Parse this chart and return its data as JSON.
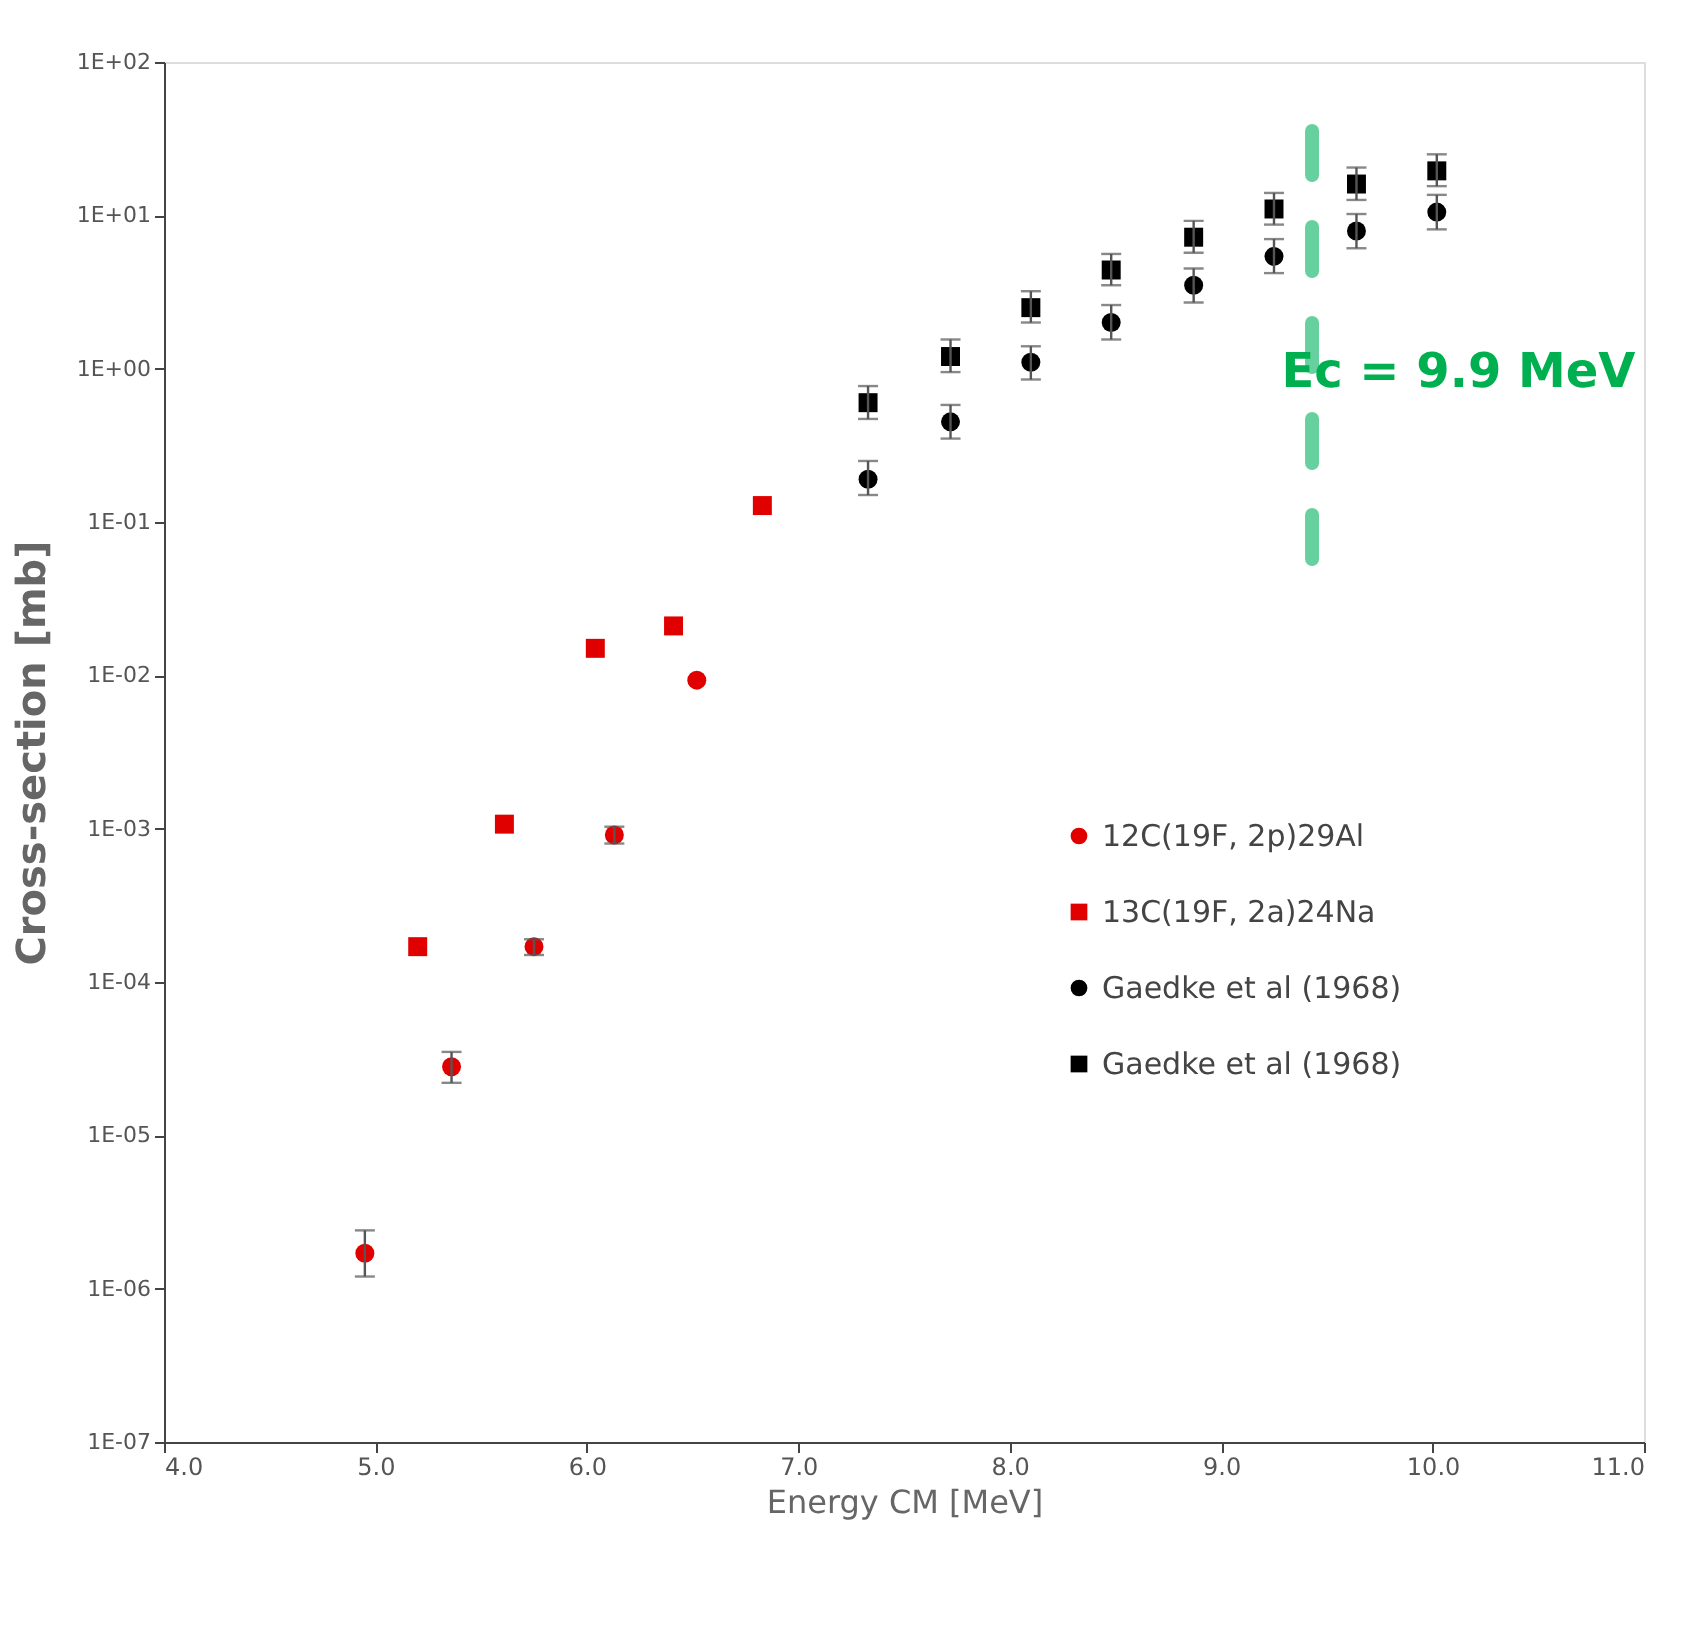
{
  "chart_data": {
    "type": "scatter",
    "xlabel": "Energy CM [MeV]",
    "ylabel": "Cross-section [mb]",
    "log": "y",
    "xlim": [
      4.0,
      11.0
    ],
    "xticks": [
      {
        "value": 4,
        "label": "4.0"
      },
      {
        "value": 5,
        "label": "5.0"
      },
      {
        "value": 6,
        "label": "6.0"
      },
      {
        "value": 7,
        "label": "7.0"
      },
      {
        "value": 8,
        "label": "8.0"
      },
      {
        "value": 9,
        "label": "9.0"
      },
      {
        "value": 10,
        "label": "10.0"
      },
      {
        "value": 11,
        "label": "11.0"
      }
    ],
    "ylim": [
      1e-07,
      100
    ],
    "yticks": [
      {
        "value": 1e-07,
        "label": "1E-07"
      },
      {
        "value": 1e-06,
        "label": "1E-06"
      },
      {
        "value": 1e-05,
        "label": "1E-05"
      },
      {
        "value": 0.0001,
        "label": "1E-04"
      },
      {
        "value": 0.001,
        "label": "1E-03"
      },
      {
        "value": 0.01,
        "label": "1E-02"
      },
      {
        "value": 0.1,
        "label": "1E-01"
      },
      {
        "value": 1,
        "label": "1E+00"
      },
      {
        "value": 10,
        "label": "1E+01"
      },
      {
        "value": 100,
        "label": "1E+02"
      }
    ],
    "grid": false,
    "legend": "right",
    "series": [
      {
        "name": "12C(19F, 2p)29Al",
        "color": "#e00000",
        "marker": "circle",
        "x": [
          4.95,
          5.36,
          5.75,
          6.13,
          6.52
        ],
        "values": [
          1.7e-06,
          2.8e-05,
          0.00017,
          0.00091,
          0.0093
        ],
        "errors": [
          [
            1.2e-06,
            2.4e-06
          ],
          [
            2.2e-05,
            3.5e-05
          ],
          [
            0.00015,
            0.00019
          ],
          [
            0.0008,
            0.00103
          ],
          null
        ]
      },
      {
        "name": "13C(19F, 2a)24Na",
        "color": "#e00000",
        "marker": "square",
        "x": [
          5.2,
          5.61,
          6.04,
          6.41,
          6.83
        ],
        "values": [
          0.00017,
          0.00107,
          0.015,
          0.021,
          0.128
        ]
      },
      {
        "name": "Gaedke et al (1968)",
        "color": "#000000",
        "marker": "circle",
        "x": [
          7.33,
          7.72,
          8.1,
          8.48,
          8.87,
          9.25,
          9.64,
          10.02
        ],
        "values": [
          0.19,
          0.45,
          1.1,
          2.0,
          3.5,
          5.4,
          7.9,
          10.5
        ],
        "errors": [
          [
            0.15,
            0.25
          ],
          [
            0.35,
            0.58
          ],
          [
            0.85,
            1.4
          ],
          [
            1.55,
            2.6
          ],
          [
            2.7,
            4.5
          ],
          [
            4.2,
            7.0
          ],
          [
            6.1,
            10.2
          ],
          [
            8.1,
            13.6
          ]
        ]
      },
      {
        "name": "Gaedke et al (1968)",
        "color": "#000000",
        "marker": "square",
        "x": [
          7.33,
          7.72,
          8.1,
          8.48,
          8.87,
          9.25,
          9.64,
          10.02
        ],
        "values": [
          0.6,
          1.2,
          2.5,
          4.4,
          7.2,
          11,
          16,
          19.5
        ],
        "errors": [
          [
            0.47,
            0.77
          ],
          [
            0.95,
            1.55
          ],
          [
            2.0,
            3.2
          ],
          [
            3.5,
            5.6
          ],
          [
            5.7,
            9.2
          ],
          [
            8.7,
            14
          ],
          [
            12.6,
            20.5
          ],
          [
            15.5,
            25
          ]
        ]
      }
    ],
    "ref_lines": [
      {
        "axis": "x",
        "value": 9.43,
        "color": "#66d19e",
        "line_style": "dashed"
      }
    ],
    "annotations": [
      "Ec = 9.9 MeV"
    ]
  }
}
